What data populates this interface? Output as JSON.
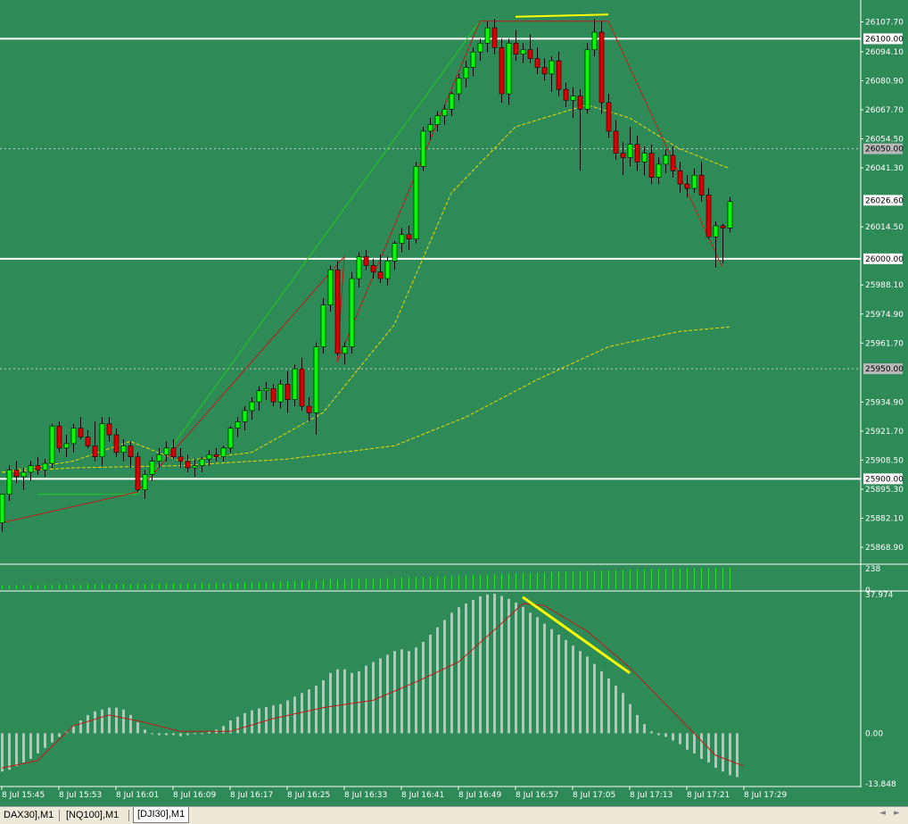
{
  "chart_data": {
    "type": "candlestick",
    "instrument_tabs": [
      {
        "label": "DAX30],M1",
        "active": false
      },
      {
        "label": "[NQ100],M1",
        "active": false
      },
      {
        "label": "[DJI30],M1",
        "active": true
      }
    ],
    "colors": {
      "background": "#2e8b57",
      "bull_candle": "#00ff00",
      "bear_candle": "#dd0000",
      "wick": "#000000",
      "trendline_up": "#c0181a",
      "trendline_thin": "#22cc22",
      "moving_average": "#e8d800",
      "highlight_line": "#ffff00",
      "level_line": "#ffffff",
      "histogram": "#c0c0c0",
      "signal_line": "#c0181a",
      "volume": "#2fe02f"
    },
    "price_panel": {
      "ylim": [
        25862.0,
        26116.0
      ],
      "y_ticks": [
        "26107.70",
        "26094.10",
        "26080.90",
        "26067.70",
        "26054.50",
        "26041.30",
        "26014.50",
        "25988.10",
        "25974.90",
        "25961.70",
        "25934.90",
        "25921.70",
        "25908.50",
        "25895.30",
        "25882.10",
        "25868.90"
      ],
      "level_labels": [
        "26100.00",
        "26050.00",
        "26026.60",
        "26000.00",
        "25950.00",
        "25900.00"
      ],
      "candles": [
        {
          "o": 25880,
          "h": 25893,
          "l": 25876,
          "c": 25893
        },
        {
          "o": 25893,
          "h": 25906,
          "l": 25890,
          "c": 25904
        },
        {
          "o": 25904,
          "h": 25908,
          "l": 25898,
          "c": 25901
        },
        {
          "o": 25901,
          "h": 25905,
          "l": 25895,
          "c": 25903
        },
        {
          "o": 25903,
          "h": 25908,
          "l": 25899,
          "c": 25906
        },
        {
          "o": 25906,
          "h": 25910,
          "l": 25902,
          "c": 25904
        },
        {
          "o": 25904,
          "h": 25909,
          "l": 25901,
          "c": 25907
        },
        {
          "o": 25907,
          "h": 25925,
          "l": 25905,
          "c": 25924
        },
        {
          "o": 25924,
          "h": 25926,
          "l": 25912,
          "c": 25914
        },
        {
          "o": 25914,
          "h": 25920,
          "l": 25910,
          "c": 25916
        },
        {
          "o": 25916,
          "h": 25925,
          "l": 25912,
          "c": 25923
        },
        {
          "o": 25923,
          "h": 25928,
          "l": 25918,
          "c": 25919
        },
        {
          "o": 25919,
          "h": 25922,
          "l": 25914,
          "c": 25915
        },
        {
          "o": 25915,
          "h": 25926,
          "l": 25908,
          "c": 25910
        },
        {
          "o": 25910,
          "h": 25928,
          "l": 25906,
          "c": 25925
        },
        {
          "o": 25925,
          "h": 25928,
          "l": 25917,
          "c": 25920
        },
        {
          "o": 25920,
          "h": 25923,
          "l": 25910,
          "c": 25912
        },
        {
          "o": 25912,
          "h": 25918,
          "l": 25908,
          "c": 25915
        },
        {
          "o": 25915,
          "h": 25917,
          "l": 25905,
          "c": 25910
        },
        {
          "o": 25910,
          "h": 25912,
          "l": 25894,
          "c": 25895
        },
        {
          "o": 25895,
          "h": 25904,
          "l": 25891,
          "c": 25902
        },
        {
          "o": 25902,
          "h": 25910,
          "l": 25899,
          "c": 25908
        },
        {
          "o": 25908,
          "h": 25914,
          "l": 25905,
          "c": 25911
        },
        {
          "o": 25911,
          "h": 25917,
          "l": 25908,
          "c": 25914
        },
        {
          "o": 25914,
          "h": 25918,
          "l": 25909,
          "c": 25910
        },
        {
          "o": 25910,
          "h": 25914,
          "l": 25905,
          "c": 25908
        },
        {
          "o": 25908,
          "h": 25911,
          "l": 25903,
          "c": 25905
        },
        {
          "o": 25905,
          "h": 25909,
          "l": 25901,
          "c": 25906
        },
        {
          "o": 25906,
          "h": 25910,
          "l": 25903,
          "c": 25909
        },
        {
          "o": 25909,
          "h": 25913,
          "l": 25906,
          "c": 25911
        },
        {
          "o": 25911,
          "h": 25914,
          "l": 25908,
          "c": 25910
        },
        {
          "o": 25910,
          "h": 25915,
          "l": 25908,
          "c": 25914
        },
        {
          "o": 25914,
          "h": 25924,
          "l": 25912,
          "c": 25923
        },
        {
          "o": 25923,
          "h": 25928,
          "l": 25919,
          "c": 25926
        },
        {
          "o": 25926,
          "h": 25933,
          "l": 25922,
          "c": 25931
        },
        {
          "o": 25931,
          "h": 25937,
          "l": 25927,
          "c": 25935
        },
        {
          "o": 25935,
          "h": 25942,
          "l": 25931,
          "c": 25940
        },
        {
          "o": 25940,
          "h": 25944,
          "l": 25936,
          "c": 25941
        },
        {
          "o": 25941,
          "h": 25943,
          "l": 25933,
          "c": 25935
        },
        {
          "o": 25935,
          "h": 25945,
          "l": 25932,
          "c": 25943
        },
        {
          "o": 25943,
          "h": 25949,
          "l": 25930,
          "c": 25936
        },
        {
          "o": 25936,
          "h": 25952,
          "l": 25933,
          "c": 25950
        },
        {
          "o": 25950,
          "h": 25955,
          "l": 25931,
          "c": 25933
        },
        {
          "o": 25933,
          "h": 25937,
          "l": 25926,
          "c": 25930
        },
        {
          "o": 25930,
          "h": 25962,
          "l": 25920,
          "c": 25960
        },
        {
          "o": 25960,
          "h": 25982,
          "l": 25957,
          "c": 25979
        },
        {
          "o": 25979,
          "h": 25997,
          "l": 25976,
          "c": 25995
        },
        {
          "o": 25995,
          "h": 25999,
          "l": 25956,
          "c": 25957
        },
        {
          "o": 25957,
          "h": 25962,
          "l": 25952,
          "c": 25960
        },
        {
          "o": 25960,
          "h": 25994,
          "l": 25957,
          "c": 25991
        },
        {
          "o": 25991,
          "h": 26003,
          "l": 25987,
          "c": 26001
        },
        {
          "o": 26001,
          "h": 26004,
          "l": 25995,
          "c": 25997
        },
        {
          "o": 25997,
          "h": 26000,
          "l": 25991,
          "c": 25994
        },
        {
          "o": 25994,
          "h": 26002,
          "l": 25989,
          "c": 25991
        },
        {
          "o": 25991,
          "h": 26001,
          "l": 25988,
          "c": 25999
        },
        {
          "o": 25999,
          "h": 26008,
          "l": 25995,
          "c": 26007
        },
        {
          "o": 26007,
          "h": 26014,
          "l": 26003,
          "c": 26011
        },
        {
          "o": 26011,
          "h": 26015,
          "l": 26004,
          "c": 26009
        },
        {
          "o": 26009,
          "h": 26044,
          "l": 26007,
          "c": 26042
        },
        {
          "o": 26042,
          "h": 26060,
          "l": 26040,
          "c": 26058
        },
        {
          "o": 26058,
          "h": 26064,
          "l": 26054,
          "c": 26061
        },
        {
          "o": 26061,
          "h": 26067,
          "l": 26058,
          "c": 26065
        },
        {
          "o": 26065,
          "h": 26070,
          "l": 26061,
          "c": 26068
        },
        {
          "o": 26068,
          "h": 26076,
          "l": 26065,
          "c": 26075
        },
        {
          "o": 26075,
          "h": 26084,
          "l": 26072,
          "c": 26082
        },
        {
          "o": 26082,
          "h": 26090,
          "l": 26078,
          "c": 26087
        },
        {
          "o": 26087,
          "h": 26096,
          "l": 26083,
          "c": 26094
        },
        {
          "o": 26094,
          "h": 26100,
          "l": 26090,
          "c": 26098
        },
        {
          "o": 26098,
          "h": 26108,
          "l": 26094,
          "c": 26105
        },
        {
          "o": 26105,
          "h": 26109,
          "l": 26093,
          "c": 26096
        },
        {
          "o": 26096,
          "h": 26100,
          "l": 26071,
          "c": 26075
        },
        {
          "o": 26075,
          "h": 26100,
          "l": 26070,
          "c": 26098
        },
        {
          "o": 26098,
          "h": 26104,
          "l": 26090,
          "c": 26093
        },
        {
          "o": 26093,
          "h": 26098,
          "l": 26089,
          "c": 26095
        },
        {
          "o": 26095,
          "h": 26102,
          "l": 26089,
          "c": 26091
        },
        {
          "o": 26091,
          "h": 26096,
          "l": 26084,
          "c": 26087
        },
        {
          "o": 26087,
          "h": 26091,
          "l": 26081,
          "c": 26084
        },
        {
          "o": 26084,
          "h": 26092,
          "l": 26076,
          "c": 26090
        },
        {
          "o": 26090,
          "h": 26094,
          "l": 26074,
          "c": 26077
        },
        {
          "o": 26077,
          "h": 26080,
          "l": 26069,
          "c": 26072
        },
        {
          "o": 26072,
          "h": 26078,
          "l": 26064,
          "c": 26074
        },
        {
          "o": 26074,
          "h": 26077,
          "l": 26040,
          "c": 26068
        },
        {
          "o": 26068,
          "h": 26098,
          "l": 26066,
          "c": 26095
        },
        {
          "o": 26095,
          "h": 26109,
          "l": 26092,
          "c": 26103
        },
        {
          "o": 26103,
          "h": 26108,
          "l": 26066,
          "c": 26071
        },
        {
          "o": 26071,
          "h": 26075,
          "l": 26055,
          "c": 26058
        },
        {
          "o": 26058,
          "h": 26063,
          "l": 26045,
          "c": 26048
        },
        {
          "o": 26048,
          "h": 26053,
          "l": 26038,
          "c": 26046
        },
        {
          "o": 26046,
          "h": 26060,
          "l": 26042,
          "c": 26052
        },
        {
          "o": 26052,
          "h": 26056,
          "l": 26040,
          "c": 26044
        },
        {
          "o": 26044,
          "h": 26051,
          "l": 26038,
          "c": 26048
        },
        {
          "o": 26048,
          "h": 26052,
          "l": 26034,
          "c": 26037
        },
        {
          "o": 26037,
          "h": 26046,
          "l": 26034,
          "c": 26043
        },
        {
          "o": 26043,
          "h": 26050,
          "l": 26039,
          "c": 26047
        },
        {
          "o": 26047,
          "h": 26051,
          "l": 26037,
          "c": 26040
        },
        {
          "o": 26040,
          "h": 26044,
          "l": 26030,
          "c": 26034
        },
        {
          "o": 26034,
          "h": 26038,
          "l": 26028,
          "c": 26032
        },
        {
          "o": 26032,
          "h": 26041,
          "l": 26030,
          "c": 26038
        },
        {
          "o": 26038,
          "h": 26044,
          "l": 26026,
          "c": 26029
        },
        {
          "o": 26029,
          "h": 26032,
          "l": 26009,
          "c": 26010
        },
        {
          "o": 26010,
          "h": 26017,
          "l": 25996,
          "c": 26015
        },
        {
          "o": 26015,
          "h": 26016,
          "l": 25998,
          "c": 26014
        },
        {
          "o": 26014,
          "h": 26028,
          "l": 26012,
          "c": 26026
        }
      ],
      "ma_fast": [
        [
          0,
          25903
        ],
        [
          10,
          25908
        ],
        [
          18,
          25917
        ],
        [
          25,
          25908
        ],
        [
          35,
          25912
        ],
        [
          45,
          25930
        ],
        [
          55,
          25970
        ],
        [
          63,
          26030
        ],
        [
          72,
          26060
        ],
        [
          82,
          26070
        ],
        [
          88,
          26064
        ],
        [
          95,
          26050
        ],
        [
          102,
          26041
        ]
      ],
      "ma_slow": [
        [
          0,
          25903
        ],
        [
          10,
          25905
        ],
        [
          25,
          25906
        ],
        [
          40,
          25909
        ],
        [
          55,
          25915
        ],
        [
          65,
          25928
        ],
        [
          75,
          25945
        ],
        [
          85,
          25960
        ],
        [
          95,
          25967
        ],
        [
          102,
          25969
        ]
      ],
      "trendlines_red": [
        [
          [
            0,
            25880
          ],
          [
            19,
            25894
          ],
          [
            48,
            26001
          ],
          [
            47,
            25953
          ],
          [
            67,
            26108
          ],
          [
            85,
            26108
          ],
          [
            101,
            25996
          ]
        ]
      ],
      "trendlines_green": [
        [
          [
            5,
            25893
          ],
          [
            19,
            25893
          ],
          [
            67,
            26108
          ]
        ],
        [
          [
            85,
            26108
          ],
          [
            101,
            25996
          ]
        ]
      ],
      "highlight_top": [
        [
          72,
          26110
        ],
        [
          85,
          26111
        ]
      ],
      "x_ticks": [
        {
          "i": 0,
          "label": "8 Jul 15:45"
        },
        {
          "i": 8,
          "label": "8 Jul 15:53"
        },
        {
          "i": 16,
          "label": "8 Jul 16:01"
        },
        {
          "i": 24,
          "label": "8 Jul 16:09"
        },
        {
          "i": 32,
          "label": "8 Jul 16:17"
        },
        {
          "i": 40,
          "label": "8 Jul 16:25"
        },
        {
          "i": 48,
          "label": "8 Jul 16:33"
        },
        {
          "i": 56,
          "label": "8 Jul 16:41"
        },
        {
          "i": 64,
          "label": "8 Jul 16:49"
        },
        {
          "i": 72,
          "label": "8 Jul 16:57"
        },
        {
          "i": 80,
          "label": "8 Jul 17:05"
        },
        {
          "i": 88,
          "label": "8 Jul 17:13"
        },
        {
          "i": 96,
          "label": "8 Jul 17:21"
        },
        {
          "i": 104,
          "label": "8 Jul 17:29"
        }
      ]
    },
    "volume_panel": {
      "ylim": [
        0,
        238
      ],
      "y_ticks": [
        "238",
        "0"
      ],
      "values": [
        40,
        42,
        45,
        44,
        47,
        48,
        46,
        50,
        52,
        51,
        50,
        49,
        52,
        55,
        53,
        55,
        57,
        58,
        56,
        60,
        58,
        60,
        62,
        61,
        63,
        62,
        64,
        65,
        66,
        64,
        67,
        68,
        70,
        72,
        75,
        76,
        78,
        80,
        82,
        85,
        88,
        90,
        92,
        95,
        100,
        105,
        110,
        108,
        112,
        115,
        118,
        116,
        120,
        122,
        125,
        128,
        130,
        132,
        134,
        136,
        138,
        140,
        142,
        145,
        150,
        155,
        160,
        158,
        162,
        165,
        168,
        170,
        175,
        178,
        180,
        182,
        185,
        190,
        192,
        195,
        198,
        200,
        202,
        205,
        207,
        210,
        212,
        215,
        218,
        220,
        222,
        224,
        225,
        226,
        228,
        230,
        232,
        234,
        235,
        236,
        237,
        238,
        238
      ]
    },
    "oscillator_panel": {
      "ylim": [
        -13.848,
        37.974
      ],
      "y_ticks": [
        "37.974",
        "0.00",
        "-13.848"
      ],
      "histogram": [
        -10.5,
        -10,
        -9,
        -8,
        -7,
        -5.5,
        -4,
        -2.5,
        -1,
        0.5,
        2,
        3.5,
        5,
        6,
        6.5,
        7,
        7,
        6.5,
        5,
        3,
        1,
        0,
        -0.5,
        -0.5,
        -0.5,
        -0.8,
        -0.5,
        0,
        0,
        0.5,
        1,
        2,
        3.5,
        4.5,
        5.5,
        6.3,
        6.8,
        7.2,
        7.6,
        8,
        9,
        10,
        11,
        12,
        13,
        14.5,
        16.5,
        17.5,
        17.5,
        16.5,
        17,
        18.5,
        19.5,
        20.5,
        21.5,
        22.5,
        23,
        22.5,
        23.5,
        25,
        27,
        29,
        31,
        33,
        34.5,
        35.5,
        36.5,
        37.5,
        38,
        38.2,
        37.6,
        36.8,
        35.8,
        34.6,
        33,
        31.8,
        30,
        28.5,
        27,
        25.5,
        24,
        22.5,
        21,
        19,
        17,
        15,
        13,
        11,
        8,
        5,
        2.5,
        0.5,
        -0.5,
        -1,
        -2,
        -3,
        -4.5,
        -5.5,
        -7,
        -8,
        -9.5,
        -10.5,
        -11.5,
        -12
      ],
      "signal": [
        [
          0,
          -9.5
        ],
        [
          5,
          -7.5
        ],
        [
          10,
          2
        ],
        [
          15,
          5
        ],
        [
          20,
          3
        ],
        [
          25,
          0.5
        ],
        [
          32,
          0.5
        ],
        [
          38,
          4
        ],
        [
          45,
          7
        ],
        [
          52,
          9
        ],
        [
          58,
          14
        ],
        [
          64,
          19.5
        ],
        [
          70,
          30
        ],
        [
          73,
          35.5
        ],
        [
          76,
          35
        ],
        [
          82,
          28
        ],
        [
          88,
          18
        ],
        [
          94,
          6
        ],
        [
          100,
          -6
        ],
        [
          104,
          -9
        ]
      ],
      "highlight": [
        [
          73,
          37.3
        ],
        [
          88,
          16.5
        ]
      ]
    }
  }
}
